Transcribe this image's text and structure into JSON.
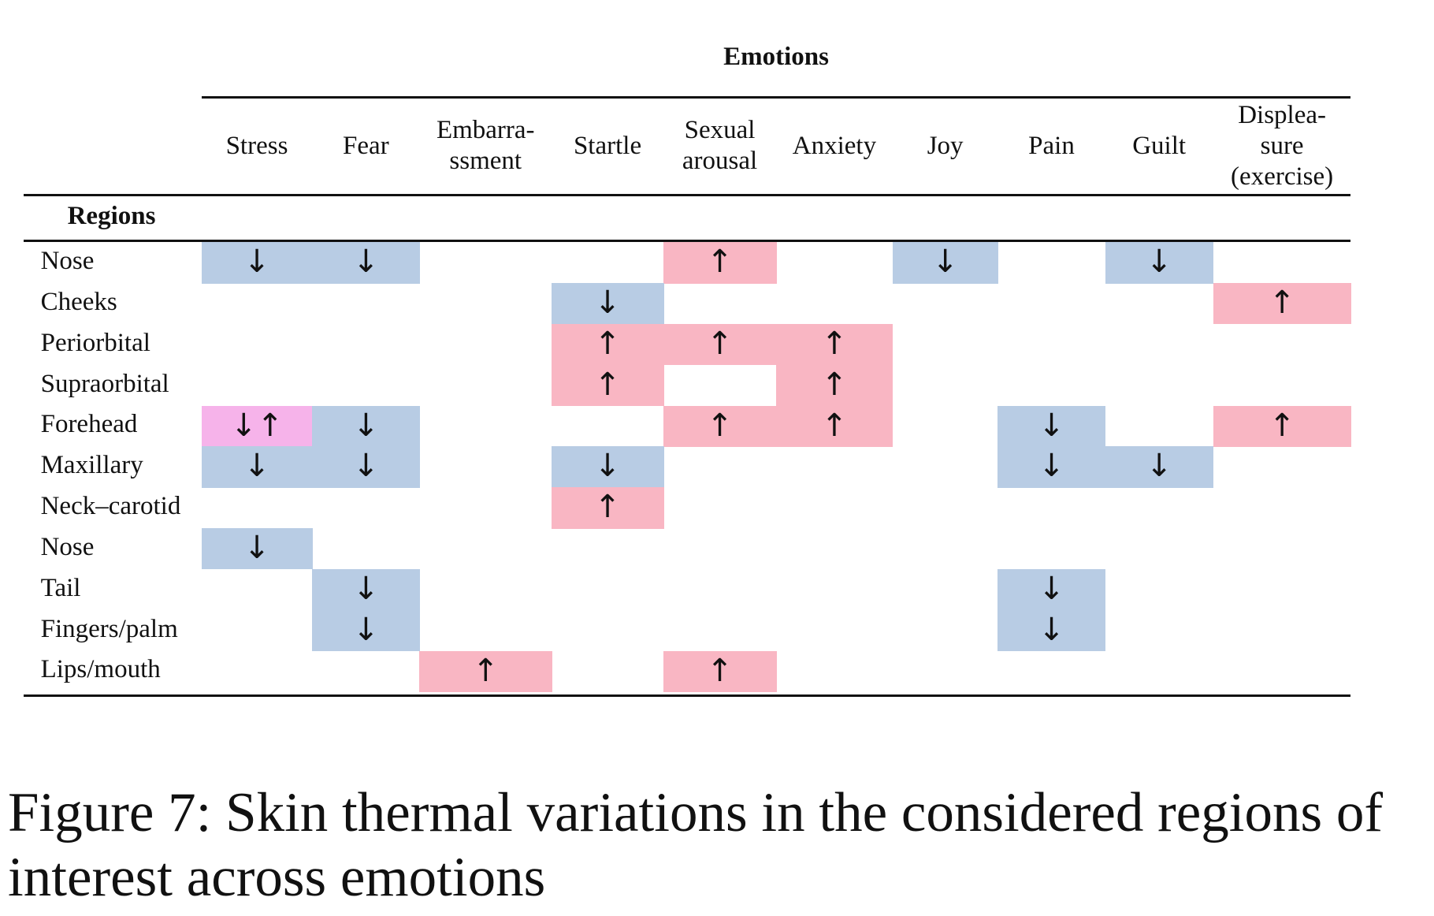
{
  "table": {
    "emotions_title": "Emotions",
    "regions_title": "Regions",
    "columns": [
      [
        "Stress"
      ],
      [
        "Fear"
      ],
      [
        "Embarra-",
        "ssment"
      ],
      [
        "Startle"
      ],
      [
        "Sexual",
        "arousal"
      ],
      [
        "Anxiety"
      ],
      [
        "Joy"
      ],
      [
        "Pain"
      ],
      [
        "Guilt"
      ],
      [
        "Displea-",
        "sure",
        "(exercise)"
      ]
    ],
    "rows": [
      {
        "label": "Nose",
        "cells": [
          "down",
          "down",
          "",
          "",
          "up",
          "",
          "down",
          "",
          "down",
          ""
        ]
      },
      {
        "label": "Cheeks",
        "cells": [
          "",
          "",
          "",
          "down",
          "",
          "",
          "",
          "",
          "",
          "up"
        ]
      },
      {
        "label": "Periorbital",
        "cells": [
          "",
          "",
          "",
          "up",
          "up",
          "up",
          "",
          "",
          "",
          ""
        ]
      },
      {
        "label": "Supraorbital",
        "cells": [
          "",
          "",
          "",
          "up",
          "",
          "up",
          "",
          "",
          "",
          ""
        ]
      },
      {
        "label": "Forehead",
        "cells": [
          "both",
          "down",
          "",
          "",
          "up",
          "up",
          "",
          "down",
          "",
          "up"
        ]
      },
      {
        "label": "Maxillary",
        "cells": [
          "down",
          "down",
          "",
          "down",
          "",
          "",
          "",
          "down",
          "down",
          ""
        ]
      },
      {
        "label": "Neck–carotid",
        "cells": [
          "",
          "",
          "",
          "up",
          "",
          "",
          "",
          "",
          "",
          ""
        ]
      },
      {
        "label": "Nose",
        "cells": [
          "down",
          "",
          "",
          "",
          "",
          "",
          "",
          "",
          "",
          ""
        ]
      },
      {
        "label": "Tail",
        "cells": [
          "",
          "down",
          "",
          "",
          "",
          "",
          "",
          "down",
          "",
          ""
        ]
      },
      {
        "label": "Fingers/palm",
        "cells": [
          "",
          "down",
          "",
          "",
          "",
          "",
          "",
          "down",
          "",
          ""
        ]
      },
      {
        "label": "Lips/mouth",
        "cells": [
          "",
          "",
          "up",
          "",
          "up",
          "",
          "",
          "",
          "",
          ""
        ]
      }
    ],
    "legend_glyphs": {
      "up": "↑",
      "down": "↓",
      "both": "↓↑"
    },
    "colors": {
      "up": "#f9b6c3",
      "down": "#b8cce4",
      "both": "#f6b3ea"
    }
  },
  "caption": "Figure 7: Skin thermal variations in the considered regions of interest across emotions"
}
